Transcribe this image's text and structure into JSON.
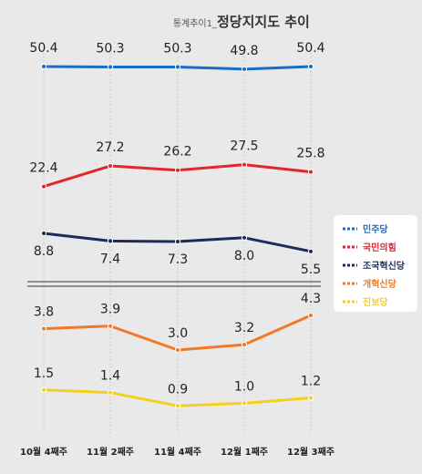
{
  "title": {
    "prefix": "통계추이1_",
    "main": "정당지지도 추이"
  },
  "chart_data": {
    "type": "line",
    "title": "통계추이1_정당지지도 추이",
    "categories": [
      "10월 4째주",
      "11월 2째주",
      "11월 4째주",
      "12월 1째주",
      "12월 3째주"
    ],
    "axis_break": true,
    "grid": "vertical-dotted",
    "legend_position": "right",
    "series": [
      {
        "name": "민주당",
        "color": "#1a6fc4",
        "values": [
          50.4,
          50.3,
          50.3,
          49.8,
          50.4
        ],
        "labels": [
          "50.4",
          "50.3",
          "50.3",
          "49.8",
          "50.4"
        ]
      },
      {
        "name": "국민의힘",
        "color": "#e3262e",
        "values": [
          22.4,
          27.2,
          26.2,
          27.5,
          25.8
        ],
        "labels": [
          "22.4",
          "27.2",
          "26.2",
          "27.5",
          "25.8"
        ]
      },
      {
        "name": "조국혁신당",
        "color": "#1f2a5c",
        "values": [
          8.8,
          7.4,
          7.3,
          8.0,
          5.5
        ],
        "labels": [
          "8.8",
          "7.4",
          "7.3",
          "8.0",
          "5.5"
        ]
      },
      {
        "name": "개혁신당",
        "color": "#f07a28",
        "values": [
          3.8,
          3.9,
          3.0,
          3.2,
          4.3
        ],
        "labels": [
          "3.8",
          "3.9",
          "3.0",
          "3.2",
          "4.3"
        ]
      },
      {
        "name": "진보당",
        "color": "#f5cf1f",
        "values": [
          1.5,
          1.4,
          0.9,
          1.0,
          1.2
        ],
        "labels": [
          "1.5",
          "1.4",
          "0.9",
          "1.0",
          "1.2"
        ]
      }
    ]
  }
}
